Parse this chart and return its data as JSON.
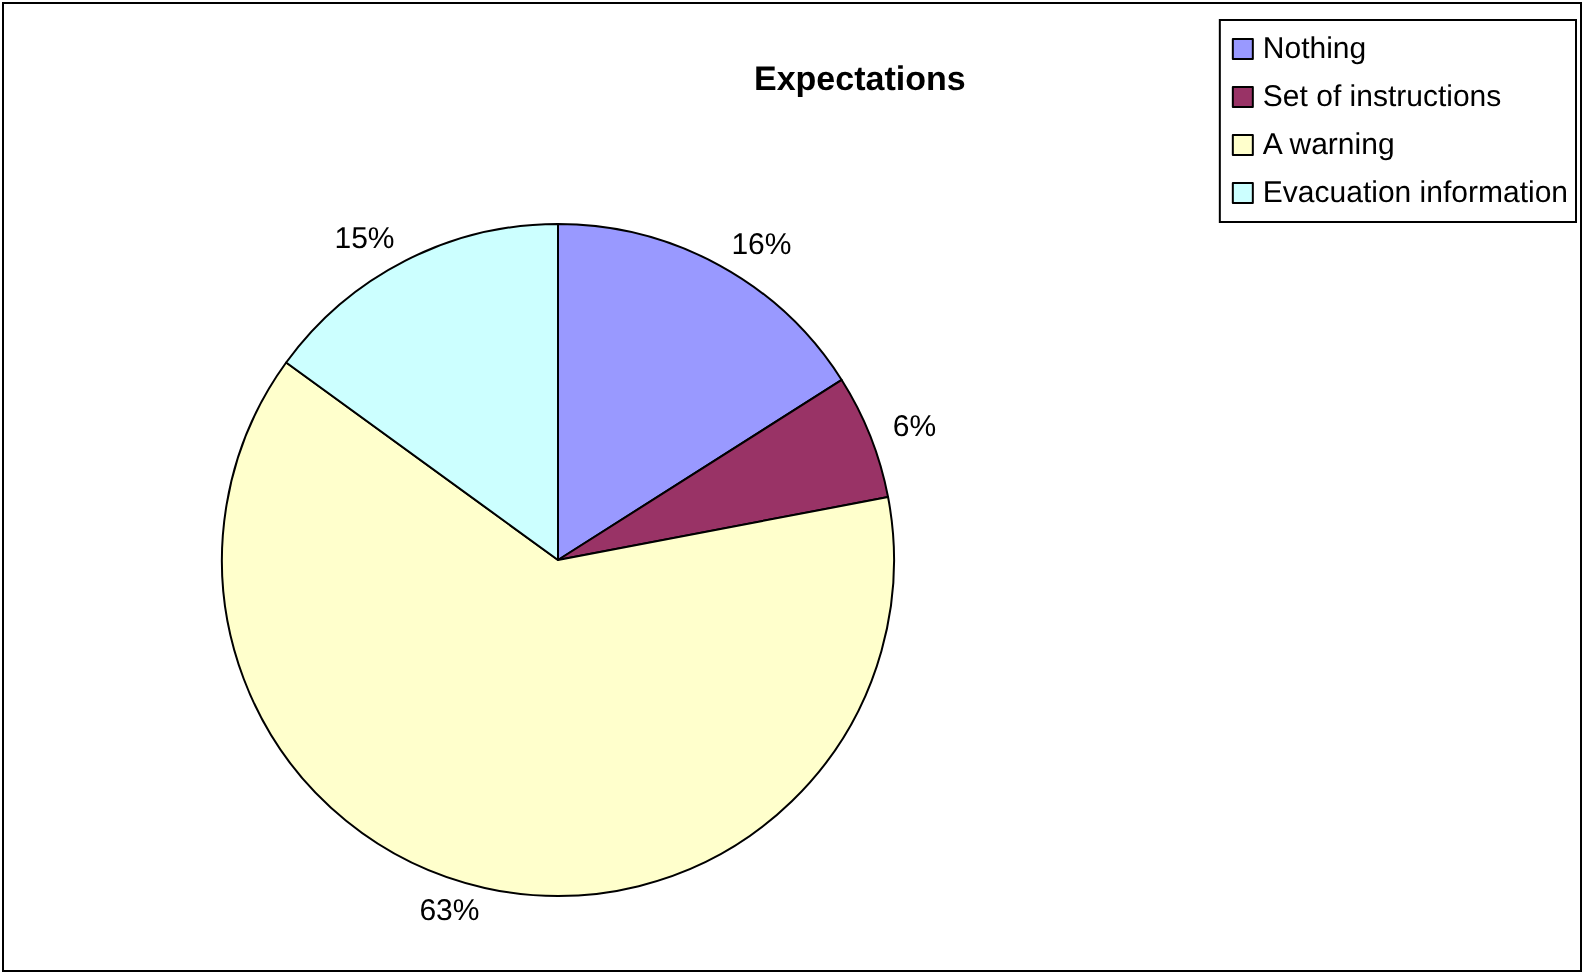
{
  "chart_data": {
    "type": "pie",
    "title": "Expectations",
    "categories": [
      "Nothing",
      "Set of instructions",
      "A warning",
      "Evacuation information"
    ],
    "values": [
      16,
      6,
      63,
      15
    ],
    "colors": [
      "#9999ff",
      "#993366",
      "#ffffcc",
      "#ccffff"
    ],
    "value_labels": [
      "16%",
      "6%",
      "63%",
      "15%"
    ],
    "legend": "top right"
  }
}
